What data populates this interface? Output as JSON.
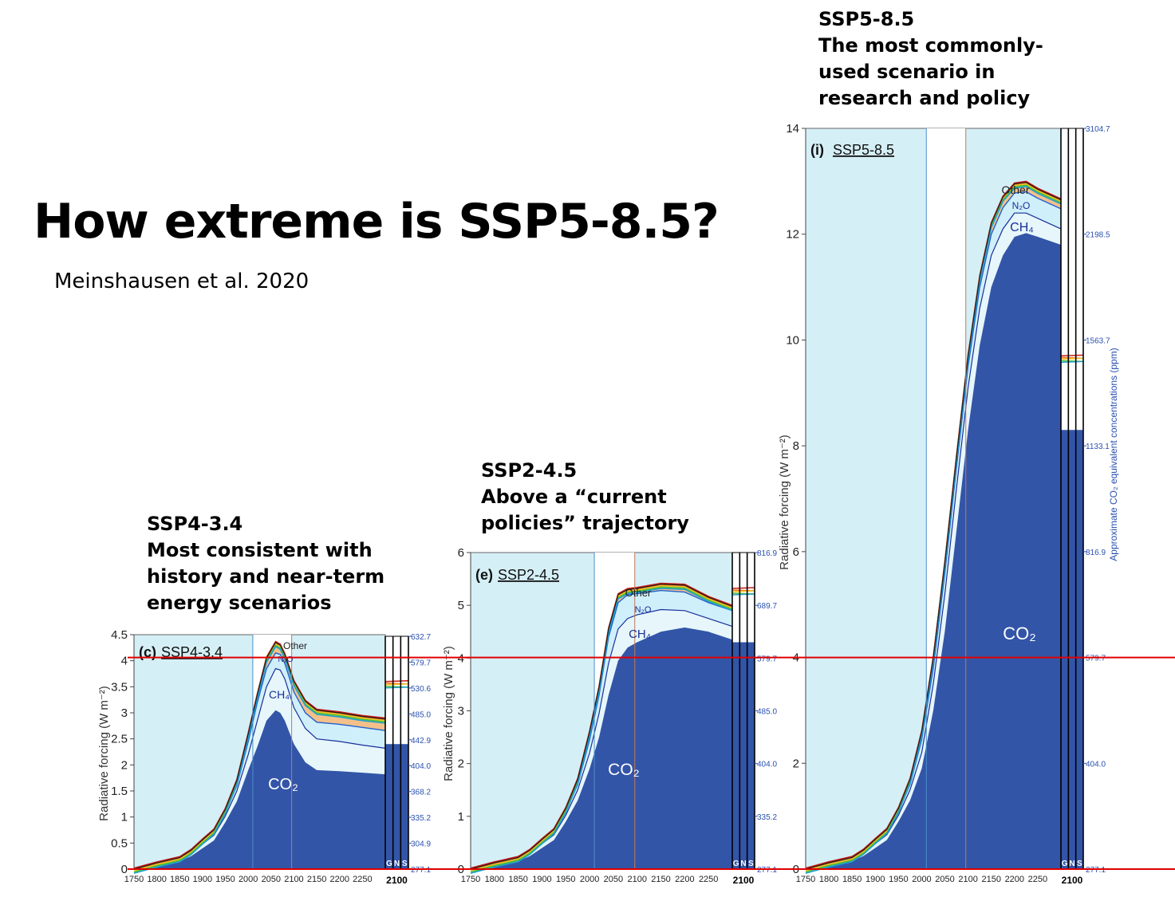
{
  "title": "How extreme is SSP5-8.5?",
  "citation": "Meinshausen et al. 2020",
  "colors": {
    "co2": "#3355a8",
    "ch4_band": "#e6f6fb",
    "panel_bg": "#d5eff6",
    "hist_line": "#4a8fc8",
    "proj_line": "#c07a5a",
    "ref_line": "#e00000",
    "axis_blue": "#2a50b0"
  },
  "reference_lines_w_m2": [
    4,
    0
  ],
  "chart_data": [
    {
      "type": "area",
      "panel": "c",
      "caption": [
        "SSP4-3.4",
        "Most consistent with",
        "history and near-term",
        "energy scenarios"
      ],
      "panel_label": "(c)",
      "scenario_label": "SSP4-3.4",
      "ylabel": "Radiative forcing (W m⁻²)",
      "ylim": [
        0,
        4.5
      ],
      "yticks": [
        "0",
        "0.5",
        "1",
        "1.5",
        "2",
        "2.5",
        "3",
        "3.5",
        "4",
        "4.5"
      ],
      "xticks": [
        "1750",
        "1800",
        "1850",
        "1900",
        "1950",
        "2000",
        "2050",
        "2100",
        "2150",
        "2200",
        "2250"
      ],
      "xlim": [
        1750,
        2300
      ],
      "ppm_ticks": [
        "277.1",
        "304.9",
        "335.2",
        "368.2",
        "404.0",
        "442.9",
        "485.0",
        "530.6",
        "579.7",
        "632.7"
      ],
      "gas_labels": [
        "CO₂",
        "CH₄",
        "N₂O",
        "Other"
      ],
      "bar_labels": [
        "G",
        "N",
        "S"
      ],
      "bar_year": "2100",
      "series": [
        {
          "name": "CO₂",
          "x": [
            1750,
            1800,
            1850,
            1875,
            1900,
            1925,
            1950,
            1975,
            2000,
            2020,
            2040,
            2060,
            2070,
            2080,
            2100,
            2125,
            2150,
            2200,
            2250,
            2300
          ],
          "values": [
            0,
            0.08,
            0.15,
            0.25,
            0.4,
            0.55,
            0.9,
            1.3,
            1.9,
            2.35,
            2.85,
            3.05,
            3.0,
            2.85,
            2.4,
            2.05,
            1.9,
            1.88,
            1.85,
            1.82
          ]
        },
        {
          "name": "CH₄",
          "x": [
            1750,
            1800,
            1850,
            1875,
            1900,
            1925,
            1950,
            1975,
            2000,
            2020,
            2040,
            2060,
            2070,
            2080,
            2100,
            2125,
            2150,
            2200,
            2250,
            2300
          ],
          "values": [
            0,
            0.1,
            0.18,
            0.3,
            0.48,
            0.65,
            1.02,
            1.5,
            2.2,
            2.85,
            3.5,
            3.85,
            3.82,
            3.65,
            3.1,
            2.7,
            2.5,
            2.45,
            2.38,
            2.32
          ]
        },
        {
          "name": "N₂O",
          "x": [
            1750,
            1800,
            1850,
            1875,
            1900,
            1925,
            1950,
            1975,
            2000,
            2020,
            2040,
            2060,
            2070,
            2080,
            2100,
            2125,
            2150,
            2200,
            2250,
            2300
          ],
          "values": [
            0,
            0.11,
            0.2,
            0.33,
            0.52,
            0.7,
            1.1,
            1.6,
            2.45,
            3.2,
            3.85,
            4.15,
            4.12,
            3.95,
            3.4,
            3.0,
            2.82,
            2.78,
            2.72,
            2.66
          ]
        },
        {
          "name": "Other",
          "x": [
            1750,
            1800,
            1850,
            1875,
            1900,
            1925,
            1950,
            1975,
            2000,
            2020,
            2040,
            2060,
            2070,
            2080,
            2100,
            2125,
            2150,
            2200,
            2250,
            2300
          ],
          "values": [
            0,
            0.12,
            0.22,
            0.36,
            0.56,
            0.75,
            1.15,
            1.7,
            2.6,
            3.35,
            4.05,
            4.35,
            4.3,
            4.12,
            3.6,
            3.22,
            3.05,
            3.0,
            2.93,
            2.88
          ]
        }
      ]
    },
    {
      "type": "area",
      "panel": "e",
      "caption": [
        "SSP2-4.5",
        "Above a “current",
        "policies” trajectory"
      ],
      "panel_label": "(e)",
      "scenario_label": "SSP2-4.5",
      "ylabel": "Radiative forcing (W m⁻²)",
      "ylim": [
        0,
        6
      ],
      "yticks": [
        "0",
        "1",
        "2",
        "3",
        "4",
        "5",
        "6"
      ],
      "xticks": [
        "1750",
        "1800",
        "1850",
        "1900",
        "1950",
        "2000",
        "2050",
        "2100",
        "2150",
        "2200",
        "2250"
      ],
      "xlim": [
        1750,
        2300
      ],
      "ppm_ticks": [
        "277.1",
        "335.2",
        "404.0",
        "485.0",
        "579.7",
        "689.7",
        "816.9"
      ],
      "gas_labels": [
        "CO₂",
        "CH₄",
        "N₂O",
        "Other"
      ],
      "bar_labels": [
        "G",
        "N",
        "S"
      ],
      "bar_year": "2100",
      "series": [
        {
          "name": "CO₂",
          "x": [
            1750,
            1800,
            1850,
            1875,
            1900,
            1925,
            1950,
            1975,
            2000,
            2020,
            2040,
            2060,
            2080,
            2100,
            2150,
            2200,
            2250,
            2300
          ],
          "values": [
            0,
            0.08,
            0.15,
            0.25,
            0.4,
            0.55,
            0.9,
            1.3,
            1.9,
            2.5,
            3.3,
            3.95,
            4.2,
            4.3,
            4.5,
            4.58,
            4.5,
            4.35
          ]
        },
        {
          "name": "CH₄",
          "x": [
            1750,
            1800,
            1850,
            1875,
            1900,
            1925,
            1950,
            1975,
            2000,
            2020,
            2040,
            2060,
            2080,
            2100,
            2150,
            2200,
            2250,
            2300
          ],
          "values": [
            0,
            0.1,
            0.18,
            0.3,
            0.48,
            0.65,
            1.02,
            1.5,
            2.2,
            2.95,
            3.9,
            4.55,
            4.75,
            4.82,
            4.92,
            4.9,
            4.75,
            4.6
          ]
        },
        {
          "name": "N₂O",
          "x": [
            1750,
            1800,
            1850,
            1875,
            1900,
            1925,
            1950,
            1975,
            2000,
            2020,
            2040,
            2060,
            2080,
            2100,
            2150,
            2200,
            2250,
            2300
          ],
          "values": [
            0,
            0.11,
            0.2,
            0.33,
            0.52,
            0.7,
            1.1,
            1.6,
            2.45,
            3.3,
            4.4,
            5.05,
            5.2,
            5.22,
            5.28,
            5.25,
            5.05,
            4.9
          ]
        },
        {
          "name": "Other",
          "x": [
            1750,
            1800,
            1850,
            1875,
            1900,
            1925,
            1950,
            1975,
            2000,
            2020,
            2040,
            2060,
            2080,
            2100,
            2150,
            2200,
            2250,
            2300
          ],
          "values": [
            0,
            0.12,
            0.22,
            0.36,
            0.56,
            0.75,
            1.15,
            1.7,
            2.6,
            3.45,
            4.55,
            5.2,
            5.3,
            5.32,
            5.4,
            5.38,
            5.15,
            4.98
          ]
        }
      ]
    },
    {
      "type": "area",
      "panel": "i",
      "caption": [
        "SSP5-8.5",
        "The most commonly-",
        "used scenario in",
        "research and policy"
      ],
      "panel_label": "(i)",
      "scenario_label": "SSP5-8.5",
      "ylabel": "Radiative forcing (W m⁻²)",
      "ylim": [
        0,
        14
      ],
      "yticks": [
        "0",
        "2",
        "4",
        "6",
        "8",
        "10",
        "12",
        "14"
      ],
      "xticks": [
        "1750",
        "1800",
        "1850",
        "1900",
        "1950",
        "2000",
        "2050",
        "2100",
        "2150",
        "2200",
        "2250"
      ],
      "xlim": [
        1750,
        2300
      ],
      "ppm_ticks": [
        "277.1",
        "404.0",
        "579.7",
        "816.9",
        "1133.1",
        "1563.7",
        "2198.5",
        "3104.7"
      ],
      "right_axis_label": "Approximate CO₂ equivalent concentrations (ppm)",
      "gas_labels": [
        "CO₂",
        "CH₄",
        "N₂O",
        "Other"
      ],
      "bar_labels": [
        "G",
        "N",
        "S"
      ],
      "bar_year": "2100",
      "series": [
        {
          "name": "CO₂",
          "x": [
            1750,
            1800,
            1850,
            1875,
            1900,
            1925,
            1950,
            1975,
            2000,
            2025,
            2050,
            2075,
            2100,
            2125,
            2150,
            2175,
            2200,
            2225,
            2250,
            2300
          ],
          "values": [
            0,
            0.08,
            0.15,
            0.25,
            0.4,
            0.55,
            0.9,
            1.3,
            1.9,
            3.0,
            4.5,
            6.4,
            8.3,
            9.9,
            11.0,
            11.6,
            11.95,
            12.02,
            11.95,
            11.8
          ]
        },
        {
          "name": "CH₄",
          "x": [
            1750,
            1800,
            1850,
            1875,
            1900,
            1925,
            1950,
            1975,
            2000,
            2025,
            2050,
            2075,
            2100,
            2125,
            2150,
            2175,
            2200,
            2225,
            2250,
            2300
          ],
          "values": [
            0,
            0.1,
            0.18,
            0.3,
            0.48,
            0.65,
            1.02,
            1.5,
            2.2,
            3.5,
            5.2,
            7.2,
            9.1,
            10.6,
            11.6,
            12.1,
            12.4,
            12.4,
            12.3,
            12.1
          ]
        },
        {
          "name": "N₂O",
          "x": [
            1750,
            1800,
            1850,
            1875,
            1900,
            1925,
            1950,
            1975,
            2000,
            2025,
            2050,
            2075,
            2100,
            2125,
            2150,
            2175,
            2200,
            2225,
            2250,
            2300
          ],
          "values": [
            0,
            0.11,
            0.2,
            0.33,
            0.52,
            0.7,
            1.1,
            1.6,
            2.45,
            3.8,
            5.6,
            7.6,
            9.5,
            11.0,
            12.0,
            12.5,
            12.78,
            12.8,
            12.68,
            12.48
          ]
        },
        {
          "name": "Other",
          "x": [
            1750,
            1800,
            1850,
            1875,
            1900,
            1925,
            1950,
            1975,
            2000,
            2025,
            2050,
            2075,
            2100,
            2125,
            2150,
            2175,
            2200,
            2225,
            2250,
            2300
          ],
          "values": [
            0,
            0.12,
            0.22,
            0.36,
            0.56,
            0.75,
            1.15,
            1.7,
            2.6,
            4.0,
            5.8,
            7.8,
            9.7,
            11.2,
            12.2,
            12.7,
            12.95,
            12.98,
            12.85,
            12.65
          ]
        }
      ]
    }
  ]
}
